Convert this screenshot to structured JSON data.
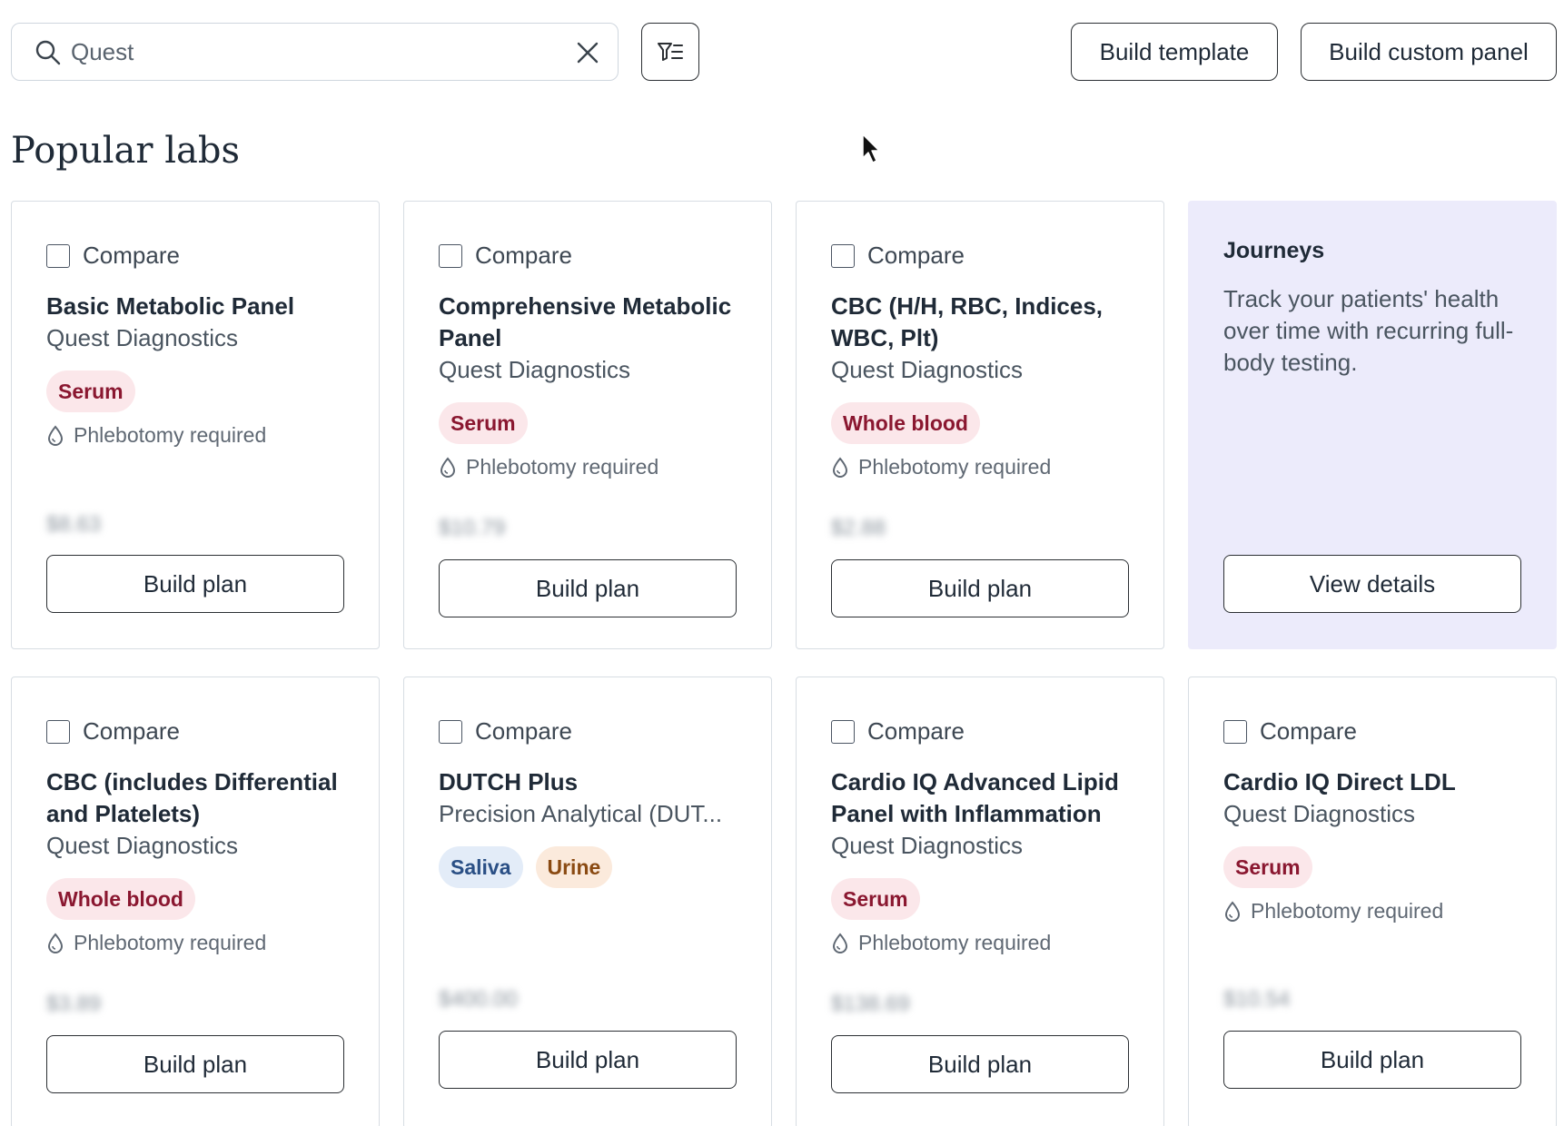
{
  "search": {
    "value": "Quest"
  },
  "toolbar": {
    "build_template_label": "Build template",
    "build_custom_panel_label": "Build custom panel"
  },
  "section_title": "Popular labs",
  "compare_label": "Compare",
  "phlebotomy_label": "Phlebotomy required",
  "build_plan_label": "Build plan",
  "journey": {
    "title": "Journeys",
    "description": "Track your patients' health over time with recurring full-body testing.",
    "button_label": "View details"
  },
  "labs": [
    {
      "name": "Basic Metabolic Panel",
      "provider": "Quest Diagnostics",
      "tags": [
        "Serum"
      ],
      "phlebotomy": true,
      "price": "$8.63"
    },
    {
      "name": "Comprehensive Metabolic Panel",
      "provider": "Quest Diagnostics",
      "tags": [
        "Serum"
      ],
      "phlebotomy": true,
      "price": "$10.79"
    },
    {
      "name": "CBC (H/H, RBC, Indices, WBC, Plt)",
      "provider": "Quest Diagnostics",
      "tags": [
        "Whole blood"
      ],
      "phlebotomy": true,
      "price": "$2.88"
    },
    {
      "name": "CBC (includes Differential and Platelets)",
      "provider": "Quest Diagnostics",
      "tags": [
        "Whole blood"
      ],
      "phlebotomy": true,
      "price": "$3.89"
    },
    {
      "name": "DUTCH Plus",
      "provider": "Precision Analytical (DUT...",
      "tags": [
        "Saliva",
        "Urine"
      ],
      "phlebotomy": false,
      "price": "$400.00"
    },
    {
      "name": "Cardio IQ Advanced Lipid Panel with Inflammation",
      "provider": "Quest Diagnostics",
      "tags": [
        "Serum"
      ],
      "phlebotomy": true,
      "price": "$138.69"
    },
    {
      "name": "Cardio IQ Direct LDL",
      "provider": "Quest Diagnostics",
      "tags": [
        "Serum"
      ],
      "phlebotomy": true,
      "price": "$10.54"
    }
  ],
  "colors": {
    "journey_bg": "#ecebfb",
    "serum_bg": "#fbe7ea",
    "serum_fg": "#8a1730",
    "saliva_bg": "#e3ecf8",
    "saliva_fg": "#2a4f85",
    "urine_bg": "#fbeadc",
    "urine_fg": "#8a4a12"
  }
}
